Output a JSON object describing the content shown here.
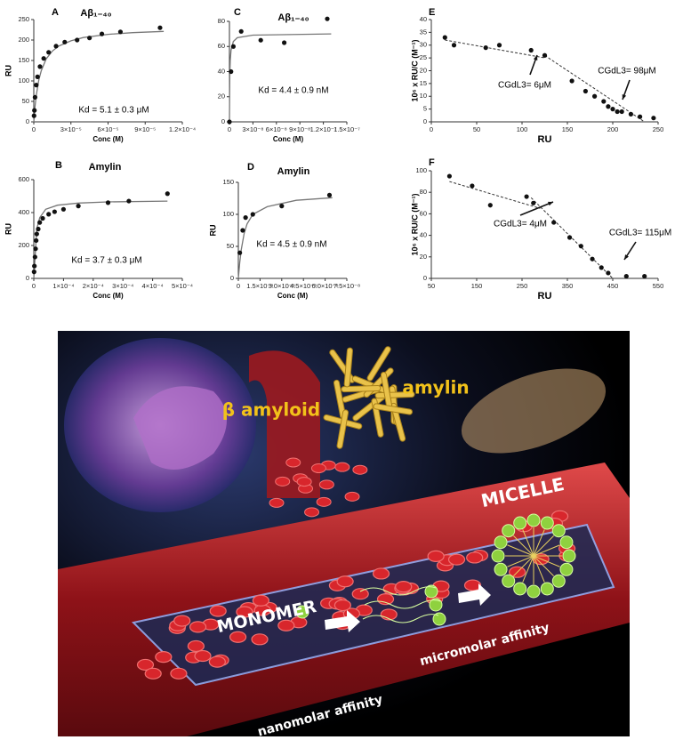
{
  "chart_data": [
    {
      "type": "scatter",
      "panel": "A",
      "title": "Aβ₁₋₄₀",
      "xlabel": "Conc (M)",
      "ylabel": "RU",
      "annotations": [
        "Kd = 5.1 ± 0.3 μM"
      ],
      "x": [
        2e-07,
        5e-07,
        1e-06,
        2e-06,
        3e-06,
        5e-06,
        8e-06,
        1.2e-05,
        1.8e-05,
        2.5e-05,
        3.5e-05,
        4.5e-05,
        5.5e-05,
        7e-05,
        0.000102
      ],
      "series": [
        {
          "color": "#111111",
          "values": [
            15,
            28,
            60,
            90,
            110,
            135,
            155,
            170,
            185,
            195,
            200,
            205,
            215,
            220,
            230
          ]
        }
      ],
      "fits": [
        {
          "color": "#777777",
          "dashed": false,
          "x": [
            0,
            1e-06,
            2e-06,
            4e-06,
            6e-06,
            1e-05,
            1.5e-05,
            2e-05,
            3e-05,
            4e-05,
            6e-05,
            8e-05,
            0.000105
          ],
          "values": [
            0,
            38,
            65,
            102,
            125,
            154,
            173,
            185,
            198,
            206,
            214,
            218,
            221
          ]
        }
      ],
      "xlim": [
        0,
        0.00012
      ],
      "xticks": [
        0,
        {
          "value": 3e-05,
          "label": "3×10⁻⁵"
        },
        {
          "value": 6e-05,
          "label": "6×10⁻⁵"
        },
        {
          "value": 9e-05,
          "label": "9×10⁻⁵"
        },
        {
          "value": 0.00012,
          "label": "1.2×10⁻⁴"
        }
      ],
      "ylim": [
        0,
        250
      ],
      "yticks": [
        0,
        50,
        100,
        150,
        200,
        250
      ]
    },
    {
      "type": "scatter",
      "panel": "B",
      "title": "Amylin",
      "xlabel": "Conc (M)",
      "ylabel": "RU",
      "annotations": [
        "Kd = 3.7 ± 0.3 μM"
      ],
      "x": [
        1e-06,
        2e-06,
        4e-06,
        6e-06,
        8e-06,
        1e-05,
        1.5e-05,
        2e-05,
        3e-05,
        5e-05,
        7e-05,
        0.0001,
        0.00015,
        0.00025,
        0.00032,
        0.00045
      ],
      "series": [
        {
          "color": "#111111",
          "values": [
            40,
            75,
            130,
            180,
            230,
            270,
            300,
            340,
            365,
            390,
            405,
            420,
            440,
            460,
            470,
            515
          ]
        }
      ],
      "fits": [
        {
          "color": "#777777",
          "dashed": false,
          "x": [
            0,
            5e-06,
            1e-05,
            2e-05,
            4e-05,
            8e-05,
            0.00015,
            0.00025,
            0.00045
          ],
          "values": [
            0,
            150,
            300,
            370,
            420,
            445,
            458,
            465,
            470
          ]
        }
      ],
      "xlim": [
        0,
        0.0005
      ],
      "xticks": [
        0,
        {
          "value": 0.0001,
          "label": "1×10⁻⁴"
        },
        {
          "value": 0.0002,
          "label": "2×10⁻⁴"
        },
        {
          "value": 0.0003,
          "label": "3×10⁻⁴"
        },
        {
          "value": 0.0004,
          "label": "4×10⁻⁴"
        },
        {
          "value": 0.0005,
          "label": "5×10⁻⁴"
        }
      ],
      "ylim": [
        0,
        600
      ],
      "yticks": [
        0,
        200,
        400,
        600
      ]
    },
    {
      "type": "scatter",
      "panel": "C",
      "title": "Aβ₁₋₄₀",
      "xlabel": "Conc (M)",
      "annotations": [
        "Kd = 4.4 ± 0.9 nM"
      ],
      "x": [
        0,
        2e-09,
        5e-09,
        1.5e-08,
        4e-08,
        7e-08,
        1.25e-07
      ],
      "series": [
        {
          "color": "#111111",
          "values": [
            0,
            40,
            60,
            72,
            65,
            63,
            82
          ]
        }
      ],
      "fits": [
        {
          "color": "#777777",
          "dashed": false,
          "x": [
            0,
            5e-10,
            1e-09,
            2e-09,
            5e-09,
            1e-08,
            3e-08,
            1.3e-07
          ],
          "values": [
            0,
            37,
            49,
            57,
            64,
            67,
            69,
            70
          ]
        }
      ],
      "xlim": [
        0,
        1.5e-07
      ],
      "xticks": [
        0,
        {
          "value": 3e-08,
          "label": "3×10⁻⁸"
        },
        {
          "value": 6e-08,
          "label": "6×10⁻⁸"
        },
        {
          "value": 9e-08,
          "label": "9×10⁻⁸"
        },
        {
          "value": 1.2e-07,
          "label": "1.2×10⁻⁷"
        },
        {
          "value": 1.5e-07,
          "label": "1.5×10⁻⁷"
        }
      ],
      "ylim": [
        0,
        80
      ],
      "yticks": [
        0,
        20,
        40,
        60,
        80
      ]
    },
    {
      "type": "scatter",
      "panel": "D",
      "title": "Amylin",
      "xlabel": "Conc (M)",
      "ylabel": "RU",
      "annotations": [
        "Kd = 4.5 ± 0.9 nM"
      ],
      "x": [
        1e-09,
        3e-09,
        5e-09,
        1e-08,
        3e-08,
        6.3e-08
      ],
      "series": [
        {
          "color": "#111111",
          "values": [
            40,
            75,
            95,
            100,
            113,
            130
          ]
        }
      ],
      "fits": [
        {
          "color": "#777777",
          "dashed": false,
          "x": [
            0,
            1e-09,
            2e-09,
            4e-09,
            6e-09,
            1e-08,
            2e-08,
            4e-08,
            6.5e-08
          ],
          "values": [
            0,
            25,
            45,
            70,
            85,
            100,
            112,
            122,
            126
          ]
        }
      ],
      "xlim": [
        0,
        7.5e-08
      ],
      "xticks": [
        0,
        {
          "value": 1.5e-08,
          "label": "1.5×10⁻⁸"
        },
        {
          "value": 3e-08,
          "label": "3.0×10⁻⁸"
        },
        {
          "value": 4.5e-08,
          "label": "4.5×10⁻⁸"
        },
        {
          "value": 6e-08,
          "label": "6.0×10⁻⁸"
        },
        {
          "value": 7.5e-08,
          "label": "7.5×10⁻⁸"
        }
      ],
      "ylim": [
        0,
        150
      ],
      "yticks": [
        0,
        50,
        100,
        150
      ]
    },
    {
      "type": "scatter",
      "panel": "E",
      "xlabel": "RU",
      "ylabel": "10⁶ x RU/C (M⁻¹)",
      "annotations": [
        "CGdL3= 6μM",
        "CGdL3= 98μM"
      ],
      "x": [
        15,
        25,
        60,
        75,
        110,
        125,
        155,
        170,
        180,
        190,
        195,
        200,
        205,
        210,
        220,
        230,
        245
      ],
      "series": [
        {
          "color": "#111111",
          "values": [
            33,
            30,
            29,
            30,
            28,
            26,
            16,
            12,
            10,
            8,
            6,
            5,
            4,
            4,
            3,
            2,
            1.5
          ]
        }
      ],
      "fits": [
        {
          "color": "#333333",
          "dashed": true,
          "x": [
            15,
            125
          ],
          "values": [
            32,
            25
          ]
        },
        {
          "color": "#333333",
          "dashed": true,
          "x": [
            125,
            235
          ],
          "values": [
            26,
            0
          ]
        }
      ],
      "xlim": [
        0,
        250
      ],
      "xticks": [
        0,
        50,
        100,
        150,
        200,
        250
      ],
      "ylim": [
        0,
        40
      ],
      "yticks": [
        0,
        5,
        10,
        15,
        20,
        25,
        30,
        35,
        40
      ]
    },
    {
      "type": "scatter",
      "panel": "F",
      "xlabel": "RU",
      "ylabel": "10⁶ x RU/C (M⁻¹)",
      "annotations": [
        "CGdL3= 4μM",
        "CGdL3= 115μM"
      ],
      "x": [
        90,
        140,
        180,
        260,
        275,
        320,
        355,
        380,
        405,
        425,
        440,
        480,
        520
      ],
      "series": [
        {
          "color": "#111111",
          "values": [
            95,
            86,
            68,
            76,
            70,
            52,
            38,
            30,
            18,
            10,
            5,
            2,
            2
          ]
        }
      ],
      "fits": [
        {
          "color": "#333333",
          "dashed": true,
          "x": [
            90,
            290
          ],
          "values": [
            90,
            65
          ]
        },
        {
          "color": "#333333",
          "dashed": true,
          "x": [
            270,
            450
          ],
          "values": [
            75,
            0
          ]
        }
      ],
      "xlim": [
        50,
        550
      ],
      "xticks": [
        50,
        150,
        250,
        350,
        450,
        550
      ],
      "ylim": [
        0,
        100
      ],
      "yticks": [
        0,
        20,
        40,
        60,
        80,
        100
      ]
    }
  ],
  "illustration": {
    "beta_amyloid": "β amyloid",
    "amylin": "amylin",
    "micelle": "MICELLE",
    "monomer": "MONOMER",
    "nanomolar": "nanomolar affinity",
    "micromolar": "micromolar affinity"
  }
}
